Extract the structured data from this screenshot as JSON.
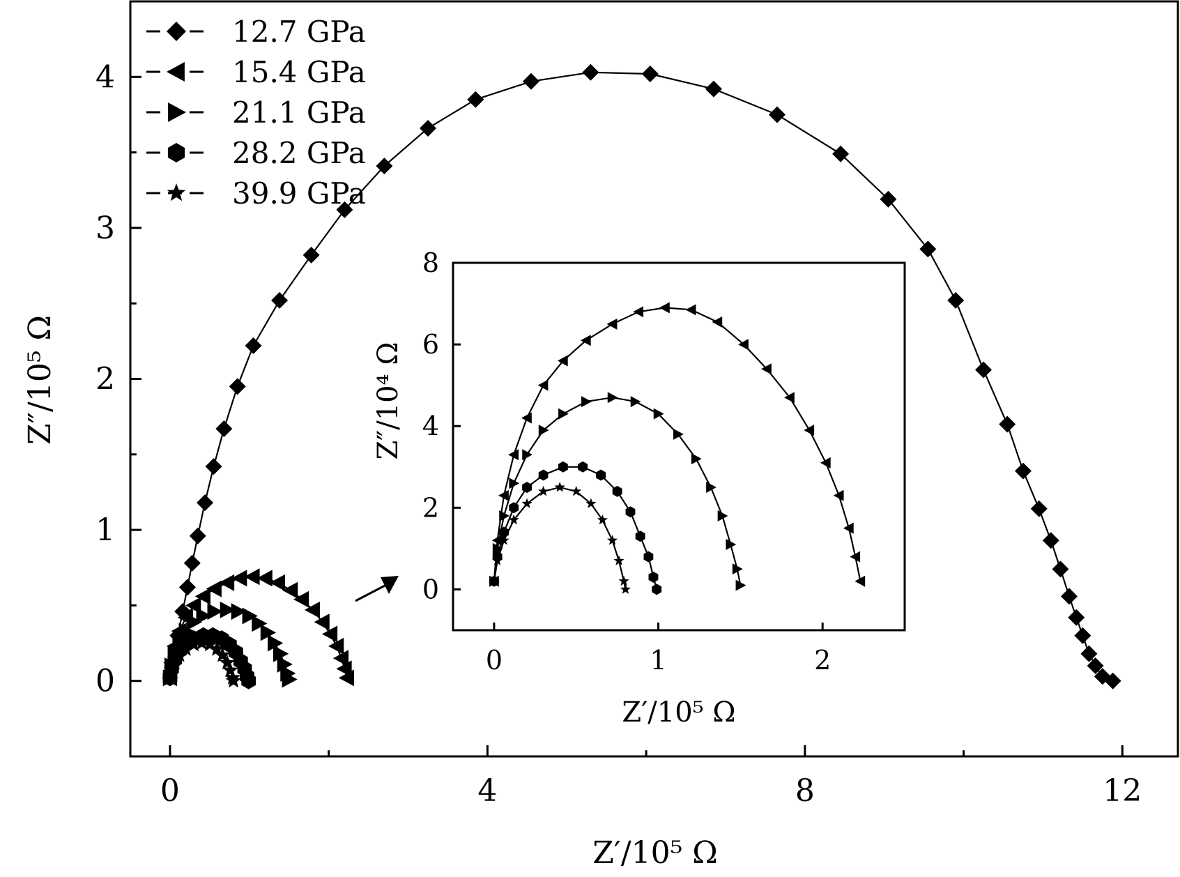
{
  "chart_data": [
    {
      "type": "scatter",
      "panel": "main",
      "xlabel": "Z′/10⁵ Ω",
      "ylabel": "Z″/10⁵ Ω",
      "xlim": [
        -0.5,
        12.7
      ],
      "ylim": [
        -0.5,
        4.5
      ],
      "xticks": [
        0,
        4,
        8,
        12
      ],
      "yticks": [
        0,
        1,
        2,
        3,
        4
      ],
      "legend_position": "top-left",
      "series": [
        {
          "name": "12.7 GPa",
          "marker": "diamond",
          "points": [
            [
              0.03,
              0.12
            ],
            [
              0.1,
              0.3
            ],
            [
              0.16,
              0.46
            ],
            [
              0.22,
              0.62
            ],
            [
              0.28,
              0.78
            ],
            [
              0.35,
              0.96
            ],
            [
              0.44,
              1.18
            ],
            [
              0.55,
              1.42
            ],
            [
              0.68,
              1.67
            ],
            [
              0.85,
              1.95
            ],
            [
              1.05,
              2.22
            ],
            [
              1.38,
              2.52
            ],
            [
              1.78,
              2.82
            ],
            [
              2.2,
              3.12
            ],
            [
              2.7,
              3.41
            ],
            [
              3.25,
              3.66
            ],
            [
              3.85,
              3.85
            ],
            [
              4.55,
              3.97
            ],
            [
              5.3,
              4.03
            ],
            [
              6.05,
              4.02
            ],
            [
              6.85,
              3.92
            ],
            [
              7.65,
              3.75
            ],
            [
              8.45,
              3.49
            ],
            [
              9.05,
              3.19
            ],
            [
              9.55,
              2.86
            ],
            [
              9.9,
              2.52
            ],
            [
              10.25,
              2.06
            ],
            [
              10.55,
              1.7
            ],
            [
              10.75,
              1.39
            ],
            [
              10.95,
              1.14
            ],
            [
              11.1,
              0.93
            ],
            [
              11.22,
              0.74
            ],
            [
              11.33,
              0.56
            ],
            [
              11.42,
              0.42
            ],
            [
              11.5,
              0.3
            ],
            [
              11.58,
              0.18
            ],
            [
              11.66,
              0.1
            ],
            [
              11.75,
              0.03
            ],
            [
              11.88,
              0.0
            ]
          ]
        },
        {
          "name": "15.4 GPa",
          "marker": "triangle-left",
          "points": [
            [
              0,
              0.02
            ],
            [
              0.02,
              0.12
            ],
            [
              0.06,
              0.23
            ],
            [
              0.12,
              0.33
            ],
            [
              0.2,
              0.42
            ],
            [
              0.3,
              0.5
            ],
            [
              0.42,
              0.56
            ],
            [
              0.56,
              0.61
            ],
            [
              0.72,
              0.65
            ],
            [
              0.88,
              0.68
            ],
            [
              1.04,
              0.69
            ],
            [
              1.2,
              0.68
            ],
            [
              1.36,
              0.65
            ],
            [
              1.52,
              0.6
            ],
            [
              1.66,
              0.54
            ],
            [
              1.8,
              0.47
            ],
            [
              1.92,
              0.39
            ],
            [
              2.02,
              0.31
            ],
            [
              2.1,
              0.23
            ],
            [
              2.16,
              0.15
            ],
            [
              2.2,
              0.08
            ],
            [
              2.23,
              0.02
            ]
          ]
        },
        {
          "name": "21.1 GPa",
          "marker": "triangle-right",
          "points": [
            [
              0,
              0.02
            ],
            [
              0.02,
              0.1
            ],
            [
              0.06,
              0.18
            ],
            [
              0.12,
              0.26
            ],
            [
              0.2,
              0.33
            ],
            [
              0.3,
              0.39
            ],
            [
              0.42,
              0.43
            ],
            [
              0.56,
              0.46
            ],
            [
              0.72,
              0.47
            ],
            [
              0.86,
              0.46
            ],
            [
              1.0,
              0.43
            ],
            [
              1.12,
              0.38
            ],
            [
              1.23,
              0.32
            ],
            [
              1.32,
              0.25
            ],
            [
              1.39,
              0.18
            ],
            [
              1.44,
              0.11
            ],
            [
              1.48,
              0.05
            ],
            [
              1.5,
              0.01
            ]
          ]
        },
        {
          "name": "28.2 GPa",
          "marker": "hexagon",
          "points": [
            [
              0,
              0.02
            ],
            [
              0.02,
              0.08
            ],
            [
              0.06,
              0.14
            ],
            [
              0.12,
              0.2
            ],
            [
              0.2,
              0.25
            ],
            [
              0.3,
              0.28
            ],
            [
              0.42,
              0.3
            ],
            [
              0.54,
              0.3
            ],
            [
              0.65,
              0.28
            ],
            [
              0.75,
              0.24
            ],
            [
              0.83,
              0.19
            ],
            [
              0.89,
              0.13
            ],
            [
              0.94,
              0.08
            ],
            [
              0.97,
              0.03
            ],
            [
              0.99,
              0.0
            ]
          ]
        },
        {
          "name": "39.9 GPa",
          "marker": "star",
          "points": [
            [
              0,
              0.02
            ],
            [
              0.02,
              0.07
            ],
            [
              0.06,
              0.12
            ],
            [
              0.12,
              0.17
            ],
            [
              0.2,
              0.21
            ],
            [
              0.3,
              0.24
            ],
            [
              0.4,
              0.25
            ],
            [
              0.5,
              0.24
            ],
            [
              0.59,
              0.21
            ],
            [
              0.66,
              0.17
            ],
            [
              0.72,
              0.12
            ],
            [
              0.76,
              0.07
            ],
            [
              0.79,
              0.02
            ],
            [
              0.8,
              0.0
            ]
          ]
        }
      ]
    },
    {
      "type": "scatter",
      "panel": "inset",
      "xlabel": "Z′/10⁵ Ω",
      "ylabel": "Z″/10⁴ Ω",
      "xlim": [
        -0.25,
        2.5
      ],
      "ylim": [
        -1,
        8
      ],
      "xticks": [
        0,
        1,
        2
      ],
      "yticks": [
        0,
        2,
        4,
        6,
        8
      ],
      "series": [
        {
          "name": "15.4 GPa",
          "marker": "triangle-left",
          "points": [
            [
              0,
              0.2
            ],
            [
              0.02,
              1.2
            ],
            [
              0.06,
              2.3
            ],
            [
              0.12,
              3.3
            ],
            [
              0.2,
              4.2
            ],
            [
              0.3,
              5.0
            ],
            [
              0.42,
              5.6
            ],
            [
              0.56,
              6.1
            ],
            [
              0.72,
              6.5
            ],
            [
              0.88,
              6.8
            ],
            [
              1.04,
              6.9
            ],
            [
              1.2,
              6.85
            ],
            [
              1.36,
              6.55
            ],
            [
              1.52,
              6.0
            ],
            [
              1.66,
              5.4
            ],
            [
              1.8,
              4.7
            ],
            [
              1.92,
              3.9
            ],
            [
              2.02,
              3.1
            ],
            [
              2.1,
              2.3
            ],
            [
              2.16,
              1.5
            ],
            [
              2.2,
              0.8
            ],
            [
              2.23,
              0.2
            ]
          ]
        },
        {
          "name": "21.1 GPa",
          "marker": "triangle-right",
          "points": [
            [
              0,
              0.2
            ],
            [
              0.02,
              1.0
            ],
            [
              0.06,
              1.8
            ],
            [
              0.12,
              2.6
            ],
            [
              0.2,
              3.3
            ],
            [
              0.3,
              3.9
            ],
            [
              0.42,
              4.3
            ],
            [
              0.56,
              4.6
            ],
            [
              0.72,
              4.7
            ],
            [
              0.86,
              4.6
            ],
            [
              1.0,
              4.3
            ],
            [
              1.12,
              3.8
            ],
            [
              1.23,
              3.2
            ],
            [
              1.32,
              2.5
            ],
            [
              1.39,
              1.8
            ],
            [
              1.44,
              1.1
            ],
            [
              1.48,
              0.5
            ],
            [
              1.5,
              0.1
            ]
          ]
        },
        {
          "name": "28.2 GPa",
          "marker": "hexagon",
          "points": [
            [
              0,
              0.2
            ],
            [
              0.02,
              0.8
            ],
            [
              0.06,
              1.4
            ],
            [
              0.12,
              2.0
            ],
            [
              0.2,
              2.5
            ],
            [
              0.3,
              2.8
            ],
            [
              0.42,
              3.0
            ],
            [
              0.54,
              3.0
            ],
            [
              0.65,
              2.8
            ],
            [
              0.75,
              2.4
            ],
            [
              0.83,
              1.9
            ],
            [
              0.89,
              1.3
            ],
            [
              0.94,
              0.8
            ],
            [
              0.97,
              0.3
            ],
            [
              0.99,
              0.0
            ]
          ]
        },
        {
          "name": "39.9 GPa",
          "marker": "star",
          "points": [
            [
              0,
              0.2
            ],
            [
              0.02,
              0.7
            ],
            [
              0.06,
              1.2
            ],
            [
              0.12,
              1.7
            ],
            [
              0.2,
              2.1
            ],
            [
              0.3,
              2.4
            ],
            [
              0.4,
              2.5
            ],
            [
              0.5,
              2.4
            ],
            [
              0.59,
              2.1
            ],
            [
              0.66,
              1.7
            ],
            [
              0.72,
              1.2
            ],
            [
              0.76,
              0.7
            ],
            [
              0.79,
              0.2
            ],
            [
              0.8,
              0.0
            ]
          ]
        }
      ]
    }
  ],
  "colors": {
    "ink": "#000000",
    "background": "#ffffff"
  }
}
